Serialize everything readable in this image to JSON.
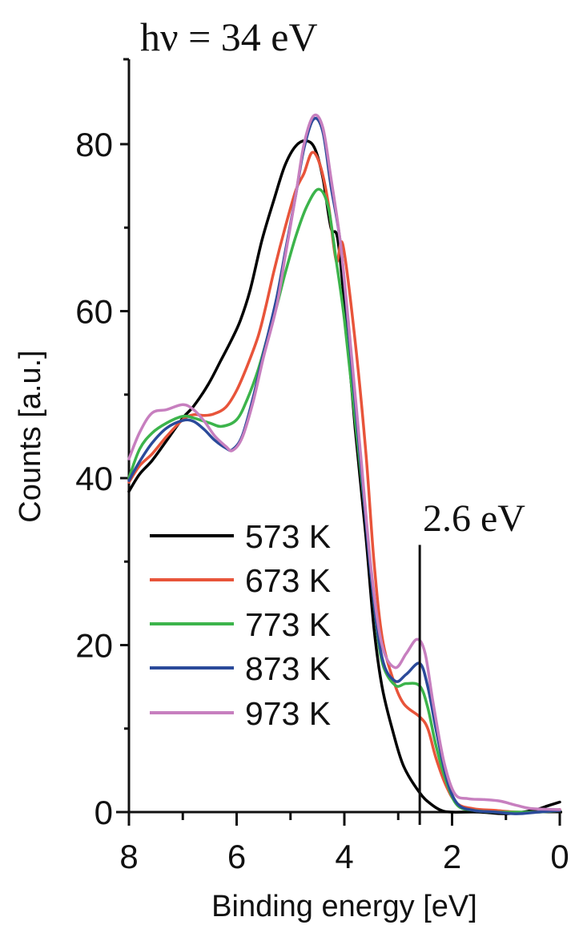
{
  "chart_data": {
    "type": "line",
    "title": "hν = 34 eV",
    "xlabel": "Binding energy [eV]",
    "ylabel": "Counts [a.u.]",
    "xlim": [
      8,
      0
    ],
    "ylim": [
      0,
      90
    ],
    "x_reversed": true,
    "xticks": [
      8,
      6,
      4,
      2,
      0
    ],
    "xtick_labels": [
      "8",
      "6",
      "4",
      "2",
      "0"
    ],
    "yticks": [
      0,
      20,
      40,
      60,
      80
    ],
    "ytick_labels": [
      "0",
      "20",
      "40",
      "60",
      "80"
    ],
    "grid": false,
    "legend_position": "lower-left inside",
    "annotations": [
      {
        "text": "2.6 eV",
        "type": "vertical-line",
        "x": 2.6,
        "y_top": 32
      }
    ],
    "series": [
      {
        "name": "573 K",
        "color": "#000000",
        "points": [
          [
            8.0,
            38.4
          ],
          [
            7.8,
            40.5
          ],
          [
            7.57,
            42.1
          ],
          [
            7.3,
            44.5
          ],
          [
            7.0,
            47.2
          ],
          [
            6.8,
            48.6
          ],
          [
            6.53,
            51.2
          ],
          [
            6.3,
            54.0
          ],
          [
            6.1,
            56.5
          ],
          [
            5.93,
            58.9
          ],
          [
            5.75,
            62.5
          ],
          [
            5.53,
            68.5
          ],
          [
            5.3,
            73.5
          ],
          [
            5.1,
            77.5
          ],
          [
            4.9,
            79.8
          ],
          [
            4.71,
            80.4
          ],
          [
            4.55,
            79.5
          ],
          [
            4.4,
            76.0
          ],
          [
            4.25,
            70.0
          ],
          [
            4.12,
            68.5
          ],
          [
            3.96,
            58.0
          ],
          [
            3.8,
            46.0
          ],
          [
            3.6,
            33.0
          ],
          [
            3.45,
            22.0
          ],
          [
            3.3,
            15.0
          ],
          [
            3.1,
            9.7
          ],
          [
            2.9,
            5.5
          ],
          [
            2.6,
            2.3
          ],
          [
            2.4,
            1.0
          ],
          [
            2.2,
            0.2
          ],
          [
            2.0,
            0.0
          ],
          [
            1.5,
            0.0
          ],
          [
            1.0,
            -0.2
          ],
          [
            0.5,
            0.2
          ],
          [
            0.2,
            0.8
          ],
          [
            0.0,
            1.2
          ]
        ]
      },
      {
        "name": "673 K",
        "color": "#e8543a",
        "points": [
          [
            8.0,
            39.5
          ],
          [
            7.8,
            41.5
          ],
          [
            7.57,
            42.9
          ],
          [
            7.3,
            45.0
          ],
          [
            7.0,
            47.0
          ],
          [
            6.8,
            47.6
          ],
          [
            6.6,
            47.5
          ],
          [
            6.42,
            47.7
          ],
          [
            6.2,
            48.5
          ],
          [
            6.0,
            50.5
          ],
          [
            5.8,
            53.5
          ],
          [
            5.6,
            57.0
          ],
          [
            5.46,
            60.5
          ],
          [
            5.3,
            65.0
          ],
          [
            5.1,
            70.0
          ],
          [
            4.9,
            74.5
          ],
          [
            4.75,
            76.5
          ],
          [
            4.6,
            79.0
          ],
          [
            4.45,
            77.5
          ],
          [
            4.3,
            73.0
          ],
          [
            4.15,
            66.0
          ],
          [
            4.03,
            68.0
          ],
          [
            3.81,
            57.0
          ],
          [
            3.6,
            43.0
          ],
          [
            3.45,
            30.0
          ],
          [
            3.3,
            21.0
          ],
          [
            3.1,
            16.0
          ],
          [
            2.9,
            13.0
          ],
          [
            2.6,
            11.4
          ],
          [
            2.45,
            10.0
          ],
          [
            2.3,
            6.5
          ],
          [
            2.1,
            3.0
          ],
          [
            1.9,
            1.0
          ],
          [
            1.6,
            0.4
          ],
          [
            1.2,
            0.2
          ],
          [
            0.8,
            0.0
          ],
          [
            0.4,
            0.0
          ],
          [
            0.0,
            0.3
          ]
        ]
      },
      {
        "name": "773 K",
        "color": "#3cb44b",
        "points": [
          [
            8.0,
            40.0
          ],
          [
            7.8,
            43.5
          ],
          [
            7.57,
            45.4
          ],
          [
            7.3,
            46.6
          ],
          [
            7.0,
            47.4
          ],
          [
            6.8,
            47.2
          ],
          [
            6.5,
            46.6
          ],
          [
            6.28,
            46.2
          ],
          [
            6.0,
            47.0
          ],
          [
            5.8,
            49.5
          ],
          [
            5.6,
            53.0
          ],
          [
            5.4,
            57.5
          ],
          [
            5.26,
            60.5
          ],
          [
            5.1,
            64.5
          ],
          [
            4.9,
            69.0
          ],
          [
            4.7,
            72.5
          ],
          [
            4.48,
            74.6
          ],
          [
            4.3,
            72.5
          ],
          [
            4.15,
            66.0
          ],
          [
            4.0,
            59.0
          ],
          [
            3.8,
            47.0
          ],
          [
            3.6,
            35.0
          ],
          [
            3.45,
            25.0
          ],
          [
            3.3,
            18.0
          ],
          [
            3.06,
            15.2
          ],
          [
            2.85,
            15.4
          ],
          [
            2.6,
            15.1
          ],
          [
            2.45,
            12.5
          ],
          [
            2.3,
            8.0
          ],
          [
            2.1,
            3.5
          ],
          [
            1.9,
            0.8
          ],
          [
            1.6,
            0.2
          ],
          [
            1.2,
            0.0
          ],
          [
            0.8,
            0.0
          ],
          [
            0.4,
            0.0
          ],
          [
            0.0,
            0.2
          ]
        ]
      },
      {
        "name": "873 K",
        "color": "#2b4a9a",
        "points": [
          [
            8.0,
            39.7
          ],
          [
            7.8,
            42.0
          ],
          [
            7.57,
            44.2
          ],
          [
            7.3,
            46.0
          ],
          [
            7.0,
            46.9
          ],
          [
            6.8,
            46.8
          ],
          [
            6.6,
            45.8
          ],
          [
            6.4,
            44.5
          ],
          [
            6.2,
            43.6
          ],
          [
            6.08,
            43.4
          ],
          [
            5.9,
            45.0
          ],
          [
            5.7,
            49.5
          ],
          [
            5.5,
            55.0
          ],
          [
            5.26,
            61.5
          ],
          [
            5.1,
            67.0
          ],
          [
            4.9,
            74.0
          ],
          [
            4.75,
            79.5
          ],
          [
            4.57,
            83.0
          ],
          [
            4.4,
            81.5
          ],
          [
            4.25,
            75.0
          ],
          [
            4.07,
            68.0
          ],
          [
            3.9,
            56.0
          ],
          [
            3.7,
            42.0
          ],
          [
            3.5,
            28.0
          ],
          [
            3.3,
            18.5
          ],
          [
            3.06,
            15.7
          ],
          [
            2.85,
            16.5
          ],
          [
            2.6,
            17.8
          ],
          [
            2.45,
            15.0
          ],
          [
            2.3,
            10.0
          ],
          [
            2.1,
            4.0
          ],
          [
            1.9,
            1.0
          ],
          [
            1.6,
            0.2
          ],
          [
            1.2,
            0.0
          ],
          [
            0.8,
            -0.2
          ],
          [
            0.4,
            0.0
          ],
          [
            0.0,
            0.2
          ]
        ]
      },
      {
        "name": "973 K",
        "color": "#c77fbf",
        "points": [
          [
            8.0,
            42.3
          ],
          [
            7.8,
            45.5
          ],
          [
            7.57,
            47.8
          ],
          [
            7.3,
            48.2
          ],
          [
            7.0,
            48.8
          ],
          [
            6.8,
            48.2
          ],
          [
            6.6,
            46.8
          ],
          [
            6.4,
            45.0
          ],
          [
            6.2,
            43.8
          ],
          [
            6.08,
            43.3
          ],
          [
            5.9,
            44.8
          ],
          [
            5.7,
            49.0
          ],
          [
            5.5,
            54.5
          ],
          [
            5.26,
            60.5
          ],
          [
            5.1,
            66.5
          ],
          [
            4.9,
            74.0
          ],
          [
            4.75,
            80.0
          ],
          [
            4.57,
            83.4
          ],
          [
            4.4,
            82.0
          ],
          [
            4.25,
            76.0
          ],
          [
            4.07,
            68.0
          ],
          [
            3.9,
            57.0
          ],
          [
            3.7,
            43.0
          ],
          [
            3.5,
            29.0
          ],
          [
            3.3,
            20.0
          ],
          [
            3.06,
            17.3
          ],
          [
            2.85,
            19.0
          ],
          [
            2.65,
            20.7
          ],
          [
            2.5,
            19.0
          ],
          [
            2.35,
            13.0
          ],
          [
            2.15,
            6.0
          ],
          [
            1.95,
            2.2
          ],
          [
            1.7,
            1.6
          ],
          [
            1.4,
            1.5
          ],
          [
            1.1,
            1.3
          ],
          [
            0.8,
            0.8
          ],
          [
            0.5,
            0.4
          ],
          [
            0.0,
            0.3
          ]
        ]
      }
    ]
  },
  "legend": {
    "items": [
      {
        "label": "573 K",
        "color": "#000000"
      },
      {
        "label": "673 K",
        "color": "#e8543a"
      },
      {
        "label": "773 K",
        "color": "#3cb44b"
      },
      {
        "label": "873 K",
        "color": "#2b4a9a"
      },
      {
        "label": "973 K",
        "color": "#c77fbf"
      }
    ]
  }
}
